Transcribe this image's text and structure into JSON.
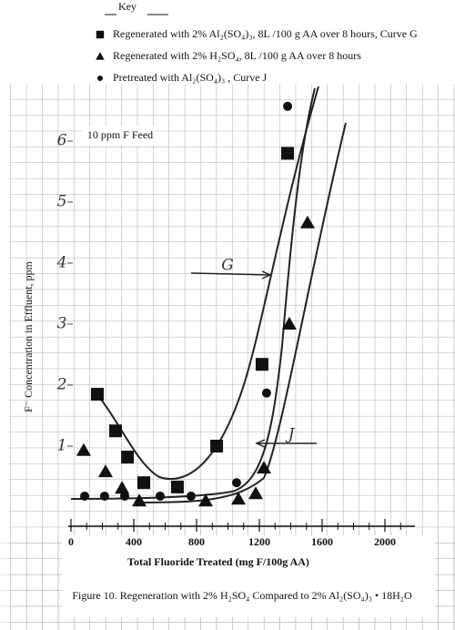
{
  "chart_data": {
    "type": "scatter",
    "key_title": "Key",
    "x_label": "Total Fluoride Treated (mg F/100g AA)",
    "y_label": "F⁻ Concentration in Effluent, ppm",
    "caption": "Figure 10. Regeneration with 2% H₂SO₄ Compared to 2% Al₂(SO₄)₃ • 18H₂O",
    "annotations": [
      "10 ppm F Feed",
      "G",
      "J"
    ],
    "xlim": [
      0,
      2200
    ],
    "xticks": [
      0,
      400,
      800,
      1200,
      1600,
      2000
    ],
    "ylim": [
      0,
      7
    ],
    "yticks": [
      1,
      2,
      3,
      4,
      5,
      6
    ],
    "series": [
      {
        "name": "Regenerated with 2% Al₂(SO₄)₃, 8L /100 g AA over 8 hours, Curve G",
        "marker": "square",
        "color": "#111111",
        "x": [
          168,
          284,
          360,
          464,
          678,
          928,
          1217,
          1380
        ],
        "values": [
          1.85,
          1.25,
          0.82,
          0.4,
          0.33,
          1.0,
          2.34,
          5.8
        ]
      },
      {
        "name": "Regenerated with 2% H₂SO₄, 8L /100 g AA over 8 hours",
        "marker": "triangle",
        "color": "#111111",
        "x": [
          81,
          220,
          325,
          435,
          858,
          1067,
          1177,
          1229,
          1391,
          1507
        ],
        "values": [
          0.93,
          0.58,
          0.31,
          0.1,
          0.1,
          0.13,
          0.22,
          0.64,
          3.0,
          4.66
        ]
      },
      {
        "name": "Pretreated with Al₂(SO₄)₃ , Curve J",
        "marker": "circle",
        "color": "#111111",
        "x": [
          87,
          214,
          342,
          568,
          765,
          1055,
          1246,
          1380
        ],
        "values": [
          0.18,
          0.18,
          0.18,
          0.18,
          0.18,
          0.4,
          1.87,
          6.57
        ]
      }
    ]
  }
}
